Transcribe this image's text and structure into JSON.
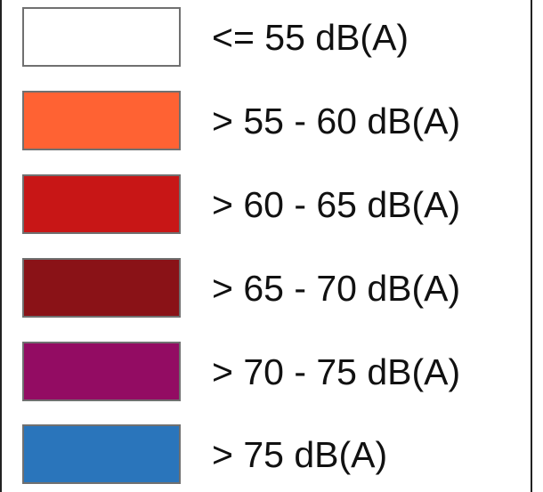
{
  "legend": {
    "items": [
      {
        "label": "<= 55 dB(A)",
        "color": "#ffffff"
      },
      {
        "label": "> 55 - 60 dB(A)",
        "color": "#ff6233"
      },
      {
        "label": "> 60 - 65 dB(A)",
        "color": "#c81616"
      },
      {
        "label": "> 65 - 70 dB(A)",
        "color": "#8a1217"
      },
      {
        "label": "> 70 - 75 dB(A)",
        "color": "#930c63"
      },
      {
        "label": "> 75 dB(A)",
        "color": "#2a75bb"
      }
    ]
  }
}
